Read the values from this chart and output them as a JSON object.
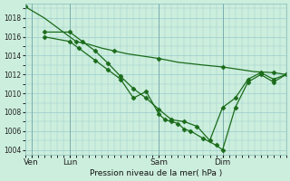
{
  "background_color": "#cceedd",
  "grid_color": "#99cccc",
  "line_color": "#1a6b1a",
  "marker_color": "#1a6b1a",
  "title": "Pression niveau de la mer( hPa )",
  "ylim": [
    1003.5,
    1019.5
  ],
  "yticks": [
    1004,
    1006,
    1008,
    1010,
    1012,
    1014,
    1016,
    1018
  ],
  "xtick_labels": [
    "Ven",
    "Lun",
    "Sam",
    "Dim"
  ],
  "xtick_positions": [
    0.5,
    3.5,
    10.5,
    15.5
  ],
  "vline_positions": [
    0.5,
    3.5,
    10.5,
    15.5
  ],
  "xlim": [
    0,
    20.5
  ],
  "line1_x": [
    0,
    1.5,
    3.5,
    4.0,
    5.0,
    6.0,
    7.0,
    8.0,
    9.0,
    10.5,
    12.0,
    14.0,
    15.5,
    17.0,
    18.0,
    19.5,
    20.5
  ],
  "line1_y": [
    1019.2,
    1018.0,
    1016.0,
    1015.5,
    1015.2,
    1014.8,
    1014.5,
    1014.2,
    1014.0,
    1013.7,
    1013.3,
    1013.0,
    1012.8,
    1012.5,
    1012.3,
    1012.2,
    1012.0
  ],
  "line2_x": [
    1.5,
    3.5,
    4.5,
    5.5,
    6.5,
    7.5,
    8.5,
    9.5,
    10.5,
    11.5,
    12.5,
    13.5,
    14.5,
    15.5,
    16.5,
    17.5,
    18.5,
    19.5,
    20.5
  ],
  "line2_y": [
    1016.5,
    1016.5,
    1015.5,
    1014.5,
    1013.2,
    1011.8,
    1010.5,
    1009.5,
    1008.3,
    1007.2,
    1007.0,
    1006.5,
    1005.0,
    1008.5,
    1009.5,
    1011.5,
    1012.2,
    1011.5,
    1012.0
  ],
  "line3_x": [
    1.5,
    3.5,
    4.2,
    5.5,
    6.5,
    7.5,
    8.5,
    9.5,
    10.5,
    11.0,
    11.5,
    12.0,
    12.5,
    13.0,
    14.0,
    15.0,
    15.5,
    16.5,
    17.5,
    18.5,
    19.5,
    20.5
  ],
  "line3_y": [
    1016.0,
    1015.5,
    1014.8,
    1013.5,
    1012.5,
    1011.5,
    1009.5,
    1010.2,
    1007.8,
    1007.2,
    1007.0,
    1006.8,
    1006.2,
    1006.0,
    1005.2,
    1004.5,
    1004.0,
    1008.5,
    1011.2,
    1012.0,
    1011.2,
    1012.0
  ]
}
